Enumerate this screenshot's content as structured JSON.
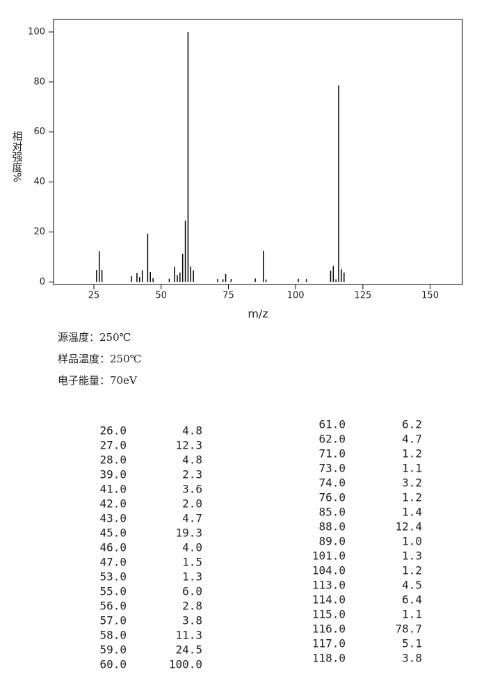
{
  "chart_data": {
    "type": "bar",
    "xlabel": "m/z",
    "ylabel": "相对强度%",
    "x": [
      26,
      27,
      28,
      39,
      41,
      42,
      43,
      45,
      46,
      47,
      53,
      55,
      56,
      57,
      58,
      59,
      60,
      61,
      62,
      71,
      73,
      74,
      76,
      85,
      88,
      89,
      101,
      104,
      113,
      114,
      115,
      116,
      117,
      118
    ],
    "x_labels": [
      "26.0",
      "27.0",
      "28.0",
      "39.0",
      "41.0",
      "42.0",
      "43.0",
      "45.0",
      "46.0",
      "47.0",
      "53.0",
      "55.0",
      "56.0",
      "57.0",
      "58.0",
      "59.0",
      "60.0",
      "61.0",
      "62.0",
      "71.0",
      "73.0",
      "74.0",
      "76.0",
      "85.0",
      "88.0",
      "89.0",
      "101.0",
      "104.0",
      "113.0",
      "114.0",
      "115.0",
      "116.0",
      "117.0",
      "118.0"
    ],
    "values": [
      4.8,
      12.3,
      4.8,
      2.3,
      3.6,
      2.0,
      4.7,
      19.3,
      4.0,
      1.5,
      1.3,
      6.0,
      2.8,
      3.8,
      11.3,
      24.5,
      100,
      6.2,
      4.7,
      1.2,
      1.1,
      3.2,
      1.2,
      1.4,
      12.4,
      1.0,
      1.3,
      1.2,
      4.5,
      6.4,
      1.1,
      78.7,
      5.1,
      3.8
    ],
    "value_labels": [
      "4.8",
      "12.3",
      "4.8",
      "2.3",
      "3.6",
      "2.0",
      "4.7",
      "19.3",
      "4.0",
      "1.5",
      "1.3",
      "6.0",
      "2.8",
      "3.8",
      "11.3",
      "24.5",
      "100.0",
      "6.2",
      "4.7",
      "1.2",
      "1.1",
      "3.2",
      "1.2",
      "1.4",
      "12.4",
      "1.0",
      "1.3",
      "1.2",
      "4.5",
      "6.4",
      "1.1",
      "78.7",
      "5.1",
      "3.8"
    ],
    "color": "#000000",
    "xlim": [
      10,
      162
    ],
    "xticks": [
      25,
      50,
      75,
      100,
      125,
      150
    ],
    "ylim": [
      -1,
      105
    ],
    "yticks": [
      0,
      20,
      40,
      60,
      80,
      100
    ]
  },
  "info": [
    "源温度：250℃",
    "样品温度：250℃",
    "电子能量：70eV"
  ]
}
